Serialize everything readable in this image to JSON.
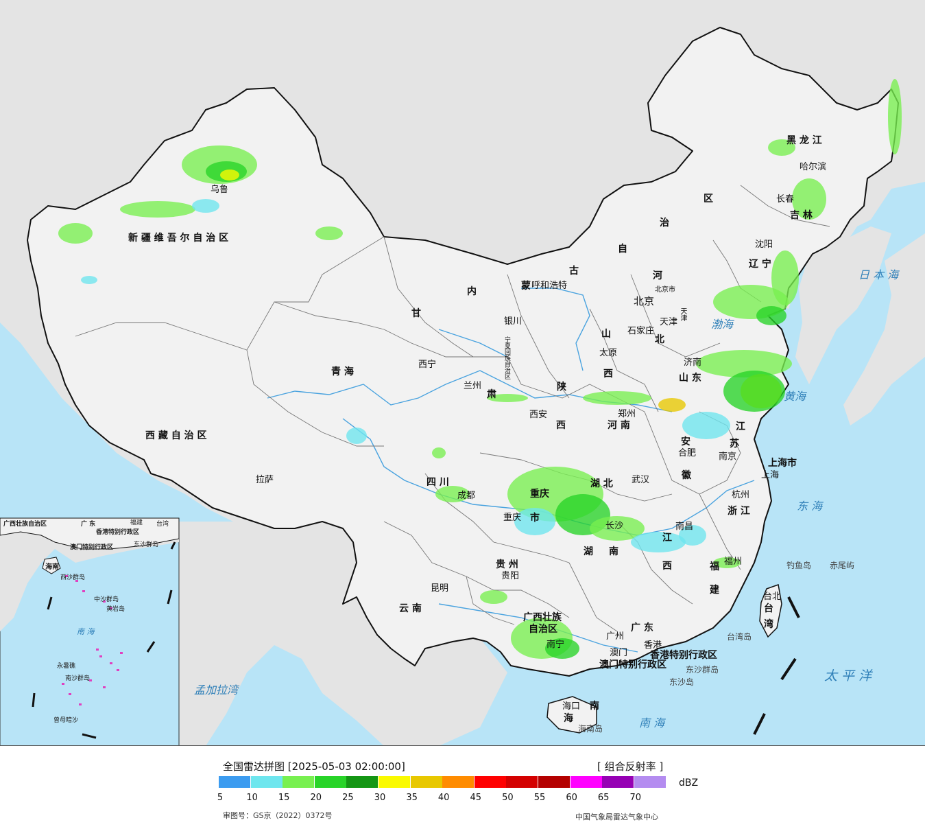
{
  "title": "全国雷达拼图",
  "timestamp": "[2025-05-03 02:00:00]",
  "product": "[ 组合反射率 ]",
  "unit": "dBZ",
  "colors": {
    "sea": "#b8e4f7",
    "land_cn": "#f2f2f2",
    "land_other": "#e4e4e4",
    "border": "#111111",
    "river": "#4aa3df"
  },
  "scale": {
    "ticks": [
      "5",
      "10",
      "15",
      "20",
      "25",
      "30",
      "35",
      "40",
      "45",
      "50",
      "55",
      "60",
      "65",
      "70"
    ],
    "colors": [
      "#3c9cf0",
      "#6ee6ee",
      "#78f050",
      "#28d428",
      "#149614",
      "#fafa00",
      "#e8c800",
      "#ff8c00",
      "#ff0000",
      "#d40000",
      "#b40000",
      "#ff00ff",
      "#9600b4",
      "#b48cf0"
    ]
  },
  "footer": {
    "review_no": "审图号：GS京（2022）0372号",
    "credit": "中国气象局雷达气象中心"
  },
  "labels": {
    "xinjiang": "新 疆 维 吾 尔 自 治 区",
    "xizang": "西 藏 自 治 区",
    "qinghai": "青    海",
    "gansu": "甘",
    "su": "肃",
    "neimeng_nei": "内",
    "neimeng_meng": "蒙",
    "neimeng_gu": "古",
    "neimeng_zi": "自",
    "neimeng_zhi": "治",
    "neimeng_qu": "区",
    "heilongjiang": "黑  龙  江",
    "jilin": "吉  林",
    "liaoning": "辽  宁",
    "hebei_he": "河",
    "hebei_bei": "北",
    "shanxi_shan": "山",
    "shanxi_xi": "西",
    "shaanxi_shan": "陕",
    "shaanxi_xi": "西",
    "henan": "河  南",
    "shandong": "山  东",
    "jiangsu_jiang": "江",
    "jiangsu_su": "苏",
    "anhui_an": "安",
    "anhui_hui": "徽",
    "shanghai": "上海市",
    "zhejiang": "浙  江",
    "hubei": "湖      北",
    "hunan_hu": "湖",
    "hunan_nan": "南",
    "jiangxi_jiang": "江",
    "jiangxi_xi": "西",
    "fujian_fu": "福",
    "fujian_jian": "建",
    "sichuan": "四      川",
    "chongqing_1": "重庆",
    "chongqing_2": "市",
    "guizhou": "贵  州",
    "yunnan": "云    南",
    "guangxi_1": "广西壮族",
    "guangxi_2": "自治区",
    "guangdong": "广    东",
    "hainan_hai": "海",
    "hainan_nan": "南",
    "ningxia": "宁夏回族自治区",
    "beijing_shi": "北京市",
    "tianjin_shi": "天津",
    "taiwan_tai": "台",
    "taiwan_wan": "湾",
    "hk_sar": "香港特别行政区",
    "macau_sar": "澳门特别行政区",
    "c_urumqi": "乌鲁",
    "c_lhasa": "拉萨",
    "c_xining": "西宁",
    "c_lanzhou": "兰州",
    "c_yinchuan": "银川",
    "c_hohhot": "呼和浩特",
    "c_beijing": "北京",
    "c_tianjin": "天津",
    "c_shijiazhuang": "石家庄",
    "c_taiyuan": "太原",
    "c_jinan": "济南",
    "c_zhengzhou": "郑州",
    "c_xian": "西安",
    "c_hefei": "合肥",
    "c_nanjing": "南京",
    "c_shanghai": "上海",
    "c_hangzhou": "杭州",
    "c_wuhan": "武汉",
    "c_chengdu": "成都",
    "c_chongqing": "重庆",
    "c_changsha": "长沙",
    "c_nanchang": "南昌",
    "c_fuzhou": "福州",
    "c_guiyang": "贵阳",
    "c_kunming": "昆明",
    "c_nanning": "南宁",
    "c_guangzhou": "广州",
    "c_macau": "澳门",
    "c_hongkong": "香港",
    "c_haikou": "海口",
    "c_taibei": "台北",
    "c_harbin": "哈尔滨",
    "c_changchun": "长春",
    "c_shenyang": "沈阳",
    "s_bohai": "渤海",
    "s_huanghai": "黄海",
    "s_donghai": "东  海",
    "s_nanhai": "南      海",
    "s_japan": "日 本 海",
    "s_pacific": "太  平  洋",
    "s_bengal": "孟加拉湾",
    "i_diaoyu": "钓鱼岛",
    "i_chiwei": "赤尾屿",
    "i_taiwan": "台湾岛",
    "i_dongsha": "东沙群岛",
    "i_dongsha2": "东沙岛",
    "i_hainan": "海南岛",
    "in_guangxi": "广西壮族自治区",
    "in_guangdong": "广  东",
    "in_fujian": "福建",
    "in_taiwan": "台湾",
    "in_hk": "香港特别行政区",
    "in_macau": "澳门特别行政区",
    "in_dongsha": "东沙群岛",
    "in_hainan": "海南",
    "in_xisha": "西沙群岛",
    "in_zhongsha": "中沙群岛",
    "in_huangyan": "黄岩岛",
    "in_nansha": "南沙群岛",
    "in_nanhai": "南  海",
    "in_yongshu": "永暑礁",
    "in_zengmu": "曾母暗沙"
  }
}
